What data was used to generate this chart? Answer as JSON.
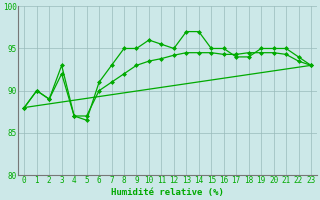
{
  "x_ticks": [
    0,
    1,
    2,
    3,
    4,
    5,
    6,
    7,
    8,
    9,
    10,
    11,
    12,
    13,
    14,
    15,
    16,
    17,
    18,
    19,
    20,
    21,
    22,
    23
  ],
  "line1_x": [
    0,
    1,
    2,
    3,
    4,
    5,
    6,
    7,
    8,
    9,
    10,
    11,
    12,
    13,
    14,
    15,
    16,
    17,
    18,
    19,
    20,
    21,
    22,
    23
  ],
  "line1_y": [
    88,
    90,
    89,
    93,
    87,
    86.5,
    91,
    93,
    95,
    95,
    96,
    95.5,
    95,
    97,
    97,
    95,
    95,
    94,
    94,
    95,
    95,
    95,
    94,
    93
  ],
  "line2_x": [
    0,
    1,
    2,
    3,
    4,
    5,
    6,
    7,
    8,
    9,
    10,
    11,
    12,
    13,
    14,
    15,
    16,
    17,
    18,
    19,
    20,
    21,
    22,
    23
  ],
  "line2_y": [
    88,
    90,
    89,
    92,
    87,
    87,
    90,
    91,
    92,
    93,
    93.5,
    93.8,
    94.2,
    94.5,
    94.5,
    94.5,
    94.3,
    94.3,
    94.5,
    94.5,
    94.5,
    94.3,
    93.5,
    93
  ],
  "line3_x": [
    0,
    23
  ],
  "line3_y": [
    88,
    93
  ],
  "line_color": "#00aa00",
  "bg_color": "#cce8e8",
  "grid_color": "#99bbbb",
  "xlabel": "Humidité relative (%)",
  "ylim": [
    80,
    100
  ],
  "xlim": [
    -0.5,
    23.5
  ],
  "ylabel_ticks": [
    80,
    85,
    90,
    95,
    100
  ],
  "tick_fontsize": 5.5,
  "xlabel_fontsize": 6.5
}
